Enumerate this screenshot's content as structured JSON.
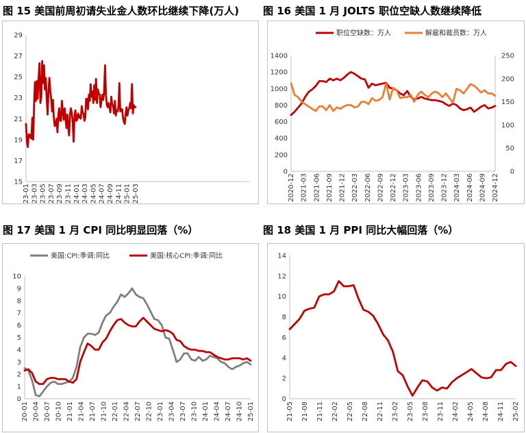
{
  "figures": [
    {
      "title": "图 15 美国前周初请失业金人数环比继续下降(万人)"
    },
    {
      "title": "图 16 美国 1 月 JOLTS 职位空缺人数继续降低"
    },
    {
      "title": "图 17 美国 1 月 CPI 同比明显回落（%）"
    },
    {
      "title": "图 18 美国 1 月 PPI 同比大幅回落（%）"
    }
  ],
  "colors": {
    "red": "#C00000",
    "orange": "#ED7D31",
    "gray": "#7F7F7F",
    "axis": "#BFBFBF"
  },
  "chart_data": [
    {
      "type": "line",
      "title": "图 15 美国前周初请失业金人数环比继续下降(万人)",
      "ylim": [
        15,
        29
      ],
      "yticks": [
        15,
        17,
        19,
        21,
        23,
        25,
        27,
        29
      ],
      "xticks": [
        "23-01",
        "23-03",
        "23-05",
        "23-07",
        "23-09",
        "23-11",
        "24-01",
        "24-03",
        "24-05",
        "24-07",
        "24-09",
        "24-11",
        "25-01",
        "25-03"
      ],
      "xlim": [
        0,
        26.5
      ],
      "grid": false,
      "series": [
        {
          "values": [
            20.5,
            18.8,
            18.3,
            19.5,
            19.5,
            19.2,
            19.1,
            21.1,
            19.0,
            22.4,
            24.5,
            22.7,
            24.6,
            22.9,
            24.9,
            26.3,
            22.5,
            23.1,
            26.5,
            24.4,
            26.1,
            23.8,
            24.9,
            23.1,
            21.4,
            23.6,
            24.9,
            23.7,
            22.9,
            21.7,
            22.8,
            21.1,
            20.3,
            20.4,
            21.0,
            19.7,
            21.4,
            22.0,
            20.8,
            20.8,
            22.7,
            21.7,
            20.9,
            22.0,
            21.1,
            20.1,
            21.4,
            20.2,
            19.4,
            21.4,
            22.0,
            21.5,
            20.6,
            18.8,
            21.3,
            21.8,
            20.8,
            20.9,
            21.5,
            21.1,
            21.3,
            21.0,
            22.2,
            21.6,
            21.5,
            20.8,
            21.1,
            22.9,
            22.9,
            21.9,
            23.3,
            22.7,
            24.3,
            23.1,
            23.6,
            22.5,
            24.2,
            22.8,
            24.8,
            22.5,
            23.8,
            23.4,
            23.3,
            22.1,
            22.7,
            23.3,
            22.8,
            23.5,
            26.1,
            23.3,
            22.3,
            22.1,
            22.5,
            22.1,
            21.6,
            23.1,
            22.4,
            22.2,
            21.5,
            22.7,
            21.3,
            21.8,
            21.7,
            22.2,
            24.4,
            21.7,
            21.9,
            21.9,
            21.1,
            20.7,
            20.5,
            21.5,
            22.1,
            21.3,
            21.8,
            22.0,
            22.5,
            22.0,
            24.3,
            21.5,
            22.3,
            22.1,
            22.1
          ]
        }
      ]
    },
    {
      "type": "line",
      "title": "图 16 美国 1 月 JOLTS 职位空缺人数继续降低",
      "ylim": [
        0,
        1400
      ],
      "yticks": [
        0,
        200,
        400,
        600,
        800,
        1000,
        1200,
        1400
      ],
      "y2lim": [
        0,
        250
      ],
      "y2ticks": [
        0,
        50,
        100,
        150,
        200,
        250
      ],
      "xticks": [
        "2020-12",
        "2021-03",
        "2021-06",
        "2021-09",
        "2021-12",
        "2022-03",
        "2022-06",
        "2022-09",
        "2022-12",
        "2023-03",
        "2023-06",
        "2023-09",
        "2023-12",
        "2024-03",
        "2024-06",
        "2024-09",
        "2024-12"
      ],
      "legend": "top",
      "grid": false,
      "series": [
        {
          "name": "职位空缺数：万人",
          "axis": "left",
          "values": [
            680,
            720,
            770,
            820,
            900,
            960,
            990,
            1030,
            1090,
            1090,
            1080,
            1120,
            1100,
            1120,
            1100,
            1130,
            1170,
            1200,
            1180,
            1150,
            1120,
            1110,
            1010,
            1060,
            1040,
            1050,
            1060,
            1070,
            1010,
            1000,
            980,
            940,
            920,
            970,
            900,
            870,
            880,
            900,
            880,
            870,
            860,
            860,
            850,
            840,
            810,
            790,
            820,
            800,
            760,
            740,
            750,
            770,
            720,
            750,
            780,
            800,
            760,
            770,
            790
          ]
        },
        {
          "name": "解雇和裁员数：万人",
          "axis": "right",
          "values": [
            190,
            165,
            160,
            150,
            145,
            140,
            135,
            130,
            140,
            140,
            132,
            143,
            130,
            138,
            135,
            140,
            143,
            143,
            138,
            140,
            150,
            150,
            145,
            158,
            152,
            154,
            160,
            190,
            155,
            180,
            175,
            158,
            160,
            160,
            165,
            150,
            165,
            172,
            165,
            160,
            168,
            172,
            168,
            160,
            168,
            158,
            148,
            178,
            175,
            168,
            178,
            188,
            185,
            178,
            170,
            175,
            168,
            168,
            163
          ]
        }
      ]
    },
    {
      "type": "line",
      "title": "图 17 美国 1 月 CPI 同比明显回落（%）",
      "ylim": [
        0,
        10
      ],
      "yticks": [
        0,
        1,
        2,
        3,
        4,
        5,
        6,
        7,
        8,
        9,
        10
      ],
      "xticks": [
        "20-01",
        "20-04",
        "20-07",
        "20-10",
        "21-01",
        "21-04",
        "21-07",
        "21-10",
        "22-01",
        "22-04",
        "22-07",
        "22-10",
        "23-01",
        "23-04",
        "23-07",
        "23-10",
        "24-01",
        "24-04",
        "24-07",
        "24-10",
        "25-01"
      ],
      "legend": "top",
      "grid": false,
      "series": [
        {
          "name": "美国:CPI:季调:同比",
          "values": [
            2.5,
            2.3,
            1.5,
            0.3,
            0.2,
            0.6,
            1.0,
            1.3,
            1.4,
            1.2,
            1.2,
            1.3,
            1.4,
            1.7,
            2.6,
            4.2,
            5.0,
            5.3,
            5.3,
            5.2,
            5.4,
            6.2,
            6.8,
            7.0,
            7.5,
            7.9,
            8.5,
            8.3,
            8.6,
            9.0,
            8.5,
            8.3,
            8.2,
            7.7,
            7.1,
            6.5,
            6.4,
            6.0,
            5.0,
            4.9,
            4.0,
            3.0,
            3.2,
            3.7,
            3.7,
            3.2,
            3.1,
            3.4,
            3.1,
            3.2,
            3.5,
            3.4,
            3.3,
            3.0,
            2.9,
            2.6,
            2.4,
            2.6,
            2.7,
            2.9,
            3.0,
            2.8
          ]
        },
        {
          "name": "美国:核心CPI:季调:同比",
          "values": [
            2.3,
            2.4,
            2.1,
            1.4,
            1.2,
            1.2,
            1.6,
            1.7,
            1.7,
            1.6,
            1.6,
            1.6,
            1.4,
            1.3,
            1.6,
            3.0,
            3.8,
            4.5,
            4.3,
            4.0,
            4.0,
            4.6,
            4.9,
            5.5,
            6.0,
            6.4,
            6.5,
            6.2,
            6.0,
            5.9,
            5.9,
            6.3,
            6.6,
            6.3,
            6.0,
            5.7,
            5.6,
            5.5,
            5.6,
            5.5,
            5.3,
            4.8,
            4.7,
            4.3,
            4.1,
            4.0,
            4.0,
            3.9,
            3.9,
            3.8,
            3.8,
            3.6,
            3.4,
            3.3,
            3.2,
            3.2,
            3.3,
            3.3,
            3.3,
            3.2,
            3.3,
            3.1
          ]
        }
      ]
    },
    {
      "type": "line",
      "title": "图 18 美国 1 月 PPI 同比大幅回落（%）",
      "ylim": [
        0,
        14
      ],
      "yticks": [
        0,
        2,
        4,
        6,
        8,
        10,
        12,
        14
      ],
      "xticks": [
        "21-05",
        "21-08",
        "21-11",
        "22-02",
        "22-05",
        "22-08",
        "22-11",
        "23-02",
        "23-05",
        "23-08",
        "23-11",
        "24-02",
        "24-05",
        "24-08",
        "24-11",
        "25-02"
      ],
      "grid": false,
      "series": [
        {
          "values": [
            6.8,
            7.3,
            7.8,
            8.6,
            8.8,
            8.9,
            10.0,
            10.2,
            10.2,
            10.5,
            11.5,
            11.0,
            11.0,
            11.1,
            9.8,
            8.7,
            8.5,
            8.1,
            7.3,
            6.3,
            5.7,
            4.6,
            2.7,
            2.3,
            1.2,
            0.3,
            1.1,
            1.8,
            1.7,
            1.1,
            0.8,
            1.1,
            1.0,
            1.6,
            2.0,
            2.3,
            2.6,
            2.9,
            2.5,
            2.1,
            2.0,
            2.1,
            2.8,
            2.8,
            3.4,
            3.6,
            3.2
          ]
        }
      ]
    }
  ]
}
